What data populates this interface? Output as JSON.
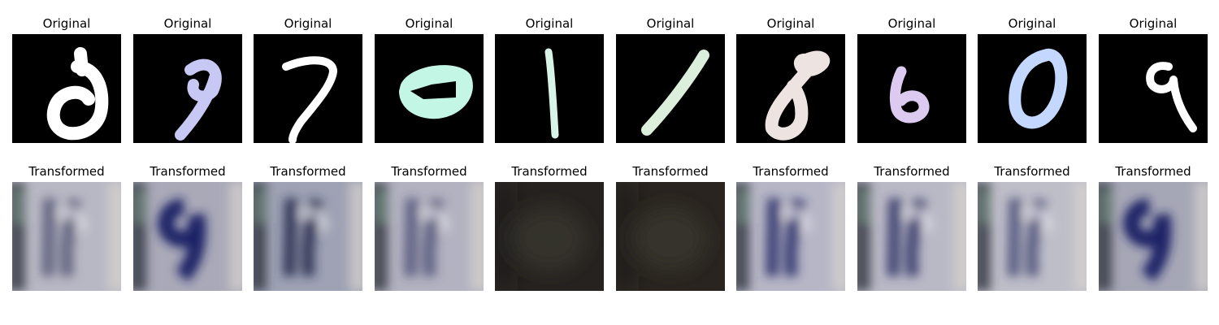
{
  "rows": [
    {
      "name": "original",
      "panels": [
        {
          "title": "Original",
          "digit": "6",
          "color": "#ffffff"
        },
        {
          "title": "Original",
          "digit": "9",
          "color": "#c8c8f4"
        },
        {
          "title": "Original",
          "digit": "7",
          "color": "#ffffff"
        },
        {
          "title": "Original",
          "digit": "0",
          "color": "#c4f6e6"
        },
        {
          "title": "Original",
          "digit": "1",
          "color": "#d8f4e8"
        },
        {
          "title": "Original",
          "digit": "1",
          "color": "#dcefdc"
        },
        {
          "title": "Original",
          "digit": "8",
          "color": "#ede3e0"
        },
        {
          "title": "Original",
          "digit": "6",
          "color": "#dccaf0"
        },
        {
          "title": "Original",
          "digit": "0",
          "color": "#c4d8ff"
        },
        {
          "title": "Original",
          "digit": "9",
          "color": "#ffffff"
        }
      ]
    },
    {
      "name": "transformed",
      "panels": [
        {
          "title": "Transformed",
          "digit": "",
          "bg": "#b8b8c4",
          "ink": "#3a3f62",
          "variant": "light"
        },
        {
          "title": "Transformed",
          "digit": "9",
          "bg": "#a9a9b8",
          "ink": "#1f2466",
          "variant": "strong"
        },
        {
          "title": "Transformed",
          "digit": "",
          "bg": "#9ea2b4",
          "ink": "#24294e",
          "variant": "medium"
        },
        {
          "title": "Transformed",
          "digit": "",
          "bg": "#b2b2c0",
          "ink": "#343a66",
          "variant": "light"
        },
        {
          "title": "Transformed",
          "digit": "",
          "bg": "#26221f",
          "ink": "#2f2d26",
          "variant": "dark"
        },
        {
          "title": "Transformed",
          "digit": "",
          "bg": "#29241f",
          "ink": "#2f2d26",
          "variant": "dark"
        },
        {
          "title": "Transformed",
          "digit": "",
          "bg": "#b6b6c6",
          "ink": "#2b2f6a",
          "variant": "medium"
        },
        {
          "title": "Transformed",
          "digit": "",
          "bg": "#b9b9c6",
          "ink": "#323769",
          "variant": "medium"
        },
        {
          "title": "Transformed",
          "digit": "",
          "bg": "#bebec9",
          "ink": "#2d3262",
          "variant": "light"
        },
        {
          "title": "Transformed",
          "digit": "9",
          "bg": "#a6a7b6",
          "ink": "#1e2466",
          "variant": "strong"
        }
      ]
    }
  ]
}
